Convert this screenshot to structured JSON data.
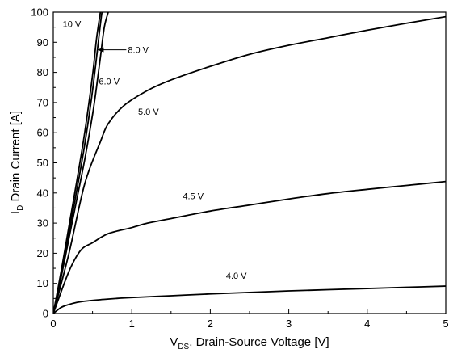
{
  "chart_data": {
    "type": "line",
    "xlabel_main": "V",
    "xlabel_sub": "DS",
    "xlabel_rest": ", Drain-Source Voltage [V]",
    "ylabel_main": "I",
    "ylabel_sub": "D",
    "ylabel_rest": " Drain Current [A]",
    "xlim": [
      0,
      5
    ],
    "ylim": [
      0,
      100
    ],
    "xticks": [
      "0",
      "1",
      "2",
      "3",
      "4",
      "5"
    ],
    "yticks": [
      "0",
      "10",
      "20",
      "30",
      "40",
      "50",
      "60",
      "70",
      "80",
      "90",
      "100"
    ],
    "grid": false,
    "series": [
      {
        "label": "10 V",
        "points": [
          [
            0,
            0
          ],
          [
            0.1,
            14
          ],
          [
            0.2,
            29
          ],
          [
            0.3,
            44
          ],
          [
            0.4,
            60
          ],
          [
            0.5,
            79
          ],
          [
            0.55,
            91
          ],
          [
            0.6,
            100
          ]
        ]
      },
      {
        "label": "8.0 V",
        "points": [
          [
            0,
            0
          ],
          [
            0.1,
            13
          ],
          [
            0.2,
            27
          ],
          [
            0.3,
            41
          ],
          [
            0.4,
            56
          ],
          [
            0.5,
            74
          ],
          [
            0.6,
            96
          ],
          [
            0.62,
            100
          ]
        ]
      },
      {
        "label": "6.0 V",
        "points": [
          [
            0,
            0
          ],
          [
            0.1,
            12
          ],
          [
            0.2,
            25
          ],
          [
            0.3,
            38
          ],
          [
            0.4,
            51
          ],
          [
            0.5,
            66
          ],
          [
            0.55,
            75
          ],
          [
            0.6,
            85
          ],
          [
            0.65,
            95
          ],
          [
            0.7,
            100
          ]
        ]
      },
      {
        "label": "5.0 V",
        "points": [
          [
            0,
            0
          ],
          [
            0.2,
            20
          ],
          [
            0.4,
            43
          ],
          [
            0.6,
            57
          ],
          [
            0.7,
            63
          ],
          [
            0.9,
            69
          ],
          [
            1.2,
            74
          ],
          [
            1.5,
            77.5
          ],
          [
            2.0,
            82
          ],
          [
            2.5,
            86
          ],
          [
            3.0,
            89
          ],
          [
            3.5,
            91.5
          ],
          [
            4.0,
            94
          ],
          [
            4.5,
            96.3
          ],
          [
            5.0,
            98.5
          ]
        ]
      },
      {
        "label": "4.5 V",
        "points": [
          [
            0,
            0
          ],
          [
            0.2,
            14
          ],
          [
            0.35,
            21
          ],
          [
            0.5,
            23.5
          ],
          [
            0.7,
            26.5
          ],
          [
            1.0,
            28.5
          ],
          [
            1.2,
            30
          ],
          [
            1.5,
            31.5
          ],
          [
            2.0,
            34
          ],
          [
            2.5,
            36
          ],
          [
            3.0,
            38
          ],
          [
            3.5,
            39.8
          ],
          [
            4.0,
            41.2
          ],
          [
            4.5,
            42.5
          ],
          [
            5.0,
            43.8
          ]
        ]
      },
      {
        "label": "4.0 V",
        "points": [
          [
            0,
            0
          ],
          [
            0.1,
            2
          ],
          [
            0.2,
            3
          ],
          [
            0.3,
            3.7
          ],
          [
            0.4,
            4.1
          ],
          [
            0.6,
            4.6
          ],
          [
            0.8,
            5
          ],
          [
            1.0,
            5.3
          ],
          [
            1.5,
            5.9
          ],
          [
            2.0,
            6.5
          ],
          [
            2.5,
            7
          ],
          [
            3.0,
            7.5
          ],
          [
            3.5,
            7.9
          ],
          [
            4.0,
            8.3
          ],
          [
            4.5,
            8.7
          ],
          [
            5.0,
            9.1
          ]
        ]
      }
    ],
    "annotations": [
      {
        "text": "10 V",
        "x": 0.12,
        "y": 95
      },
      {
        "text": "8.0 V",
        "x": 0.95,
        "y": 86.5
      },
      {
        "text": "6.0 V",
        "x": 0.58,
        "y": 76
      },
      {
        "text": "5.0 V",
        "x": 1.08,
        "y": 66
      },
      {
        "text": "4.5 V",
        "x": 1.65,
        "y": 38
      },
      {
        "text": "4.0 V",
        "x": 2.2,
        "y": 11.5
      }
    ],
    "arrow": {
      "from": [
        0.93,
        87.5
      ],
      "to": [
        0.56,
        87.5
      ]
    }
  }
}
